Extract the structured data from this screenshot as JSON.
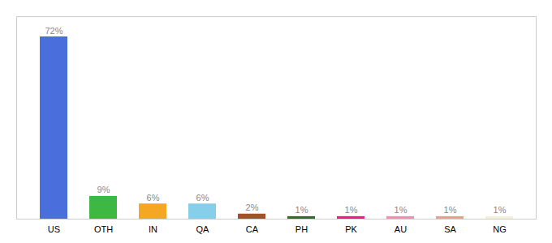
{
  "chart_data": {
    "type": "bar",
    "categories": [
      "US",
      "OTH",
      "IN",
      "QA",
      "CA",
      "PH",
      "PK",
      "AU",
      "SA",
      "NG"
    ],
    "values": [
      72,
      9,
      6,
      6,
      2,
      1,
      1,
      1,
      1,
      1
    ],
    "value_labels": [
      "72%",
      "9%",
      "6%",
      "6%",
      "2%",
      "1%",
      "1%",
      "1%",
      "1%",
      "1%"
    ],
    "colors": [
      "#4a6fdc",
      "#3cb843",
      "#f5a623",
      "#87ceeb",
      "#a0522d",
      "#2d6e2d",
      "#e91e8c",
      "#f48fb1",
      "#e8a090",
      "#f5f0d8"
    ],
    "ylim": [
      0,
      80
    ],
    "grid": false,
    "data_labels": true,
    "tick_labels": "x"
  }
}
